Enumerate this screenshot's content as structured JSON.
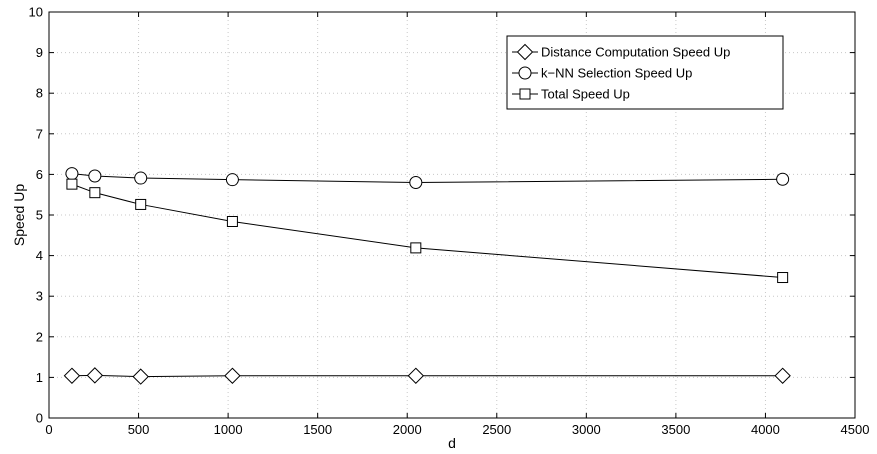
{
  "chart_data": {
    "type": "line",
    "title": "",
    "xlabel": "d",
    "ylabel": "Speed Up",
    "xlim": [
      0,
      4500
    ],
    "ylim": [
      0,
      10
    ],
    "xticks": [
      0,
      500,
      1000,
      1500,
      2000,
      2500,
      3000,
      3500,
      4000,
      4500
    ],
    "yticks": [
      0,
      1,
      2,
      3,
      4,
      5,
      6,
      7,
      8,
      9,
      10
    ],
    "grid": true,
    "legend_position": "top-right",
    "x": [
      128,
      256,
      512,
      1024,
      2048,
      4096
    ],
    "series": [
      {
        "name": "Distance Computation Speed Up",
        "marker": "diamond",
        "values": [
          1.04,
          1.05,
          1.02,
          1.04,
          1.04,
          1.04
        ]
      },
      {
        "name": "k−NN Selection Speed Up",
        "marker": "circle",
        "values": [
          6.02,
          5.96,
          5.91,
          5.87,
          5.8,
          5.88
        ]
      },
      {
        "name": "Total Speed Up",
        "marker": "square",
        "values": [
          5.76,
          5.55,
          5.26,
          4.84,
          4.19,
          3.46
        ]
      }
    ]
  }
}
